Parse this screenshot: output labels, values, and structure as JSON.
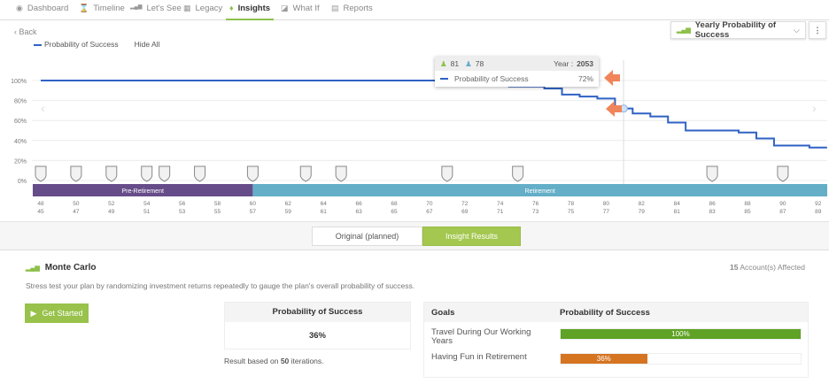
{
  "nav": {
    "tabs": [
      {
        "label": "Dashboard",
        "icon": "dashboard-icon",
        "glyph": "◉"
      },
      {
        "label": "Timeline",
        "icon": "hourglass-icon",
        "glyph": "⌛"
      },
      {
        "label": "Let's See",
        "icon": "bar-chart-icon",
        "glyph": "▂▄▆"
      },
      {
        "label": "Legacy",
        "icon": "legacy-icon",
        "glyph": "▦"
      },
      {
        "label": "Insights",
        "icon": "lightbulb-icon",
        "glyph": "♦"
      },
      {
        "label": "What If",
        "icon": "chat-icon",
        "glyph": "◪"
      },
      {
        "label": "Reports",
        "icon": "document-icon",
        "glyph": "▤"
      }
    ],
    "active": "Insights"
  },
  "back_label": "Back",
  "legend": {
    "series_label": "Probability of Success",
    "hide_all": "Hide All"
  },
  "chart_selector": {
    "selected": "Yearly Probability of Success"
  },
  "tooltip": {
    "person1_age": "81",
    "person2_age": "78",
    "year_label": "Year :",
    "year": "2053",
    "series": "Probability of Success",
    "value": "72%"
  },
  "chart_data": {
    "type": "line",
    "title": "Yearly Probability of Success",
    "series": [
      {
        "name": "Probability of Success",
        "color": "#2f62c4",
        "x": [
          48,
          49,
          50,
          51,
          52,
          53,
          54,
          55,
          56,
          57,
          58,
          59,
          60,
          61,
          62,
          63,
          64,
          65,
          66,
          67,
          68,
          69,
          70,
          71,
          72,
          73,
          74,
          75,
          76,
          77,
          78,
          79,
          80,
          81,
          82,
          83,
          84,
          85,
          86,
          87,
          88,
          89,
          90,
          91,
          92
        ],
        "values": [
          100,
          100,
          100,
          100,
          100,
          100,
          100,
          100,
          100,
          100,
          100,
          100,
          100,
          100,
          100,
          100,
          100,
          100,
          100,
          100,
          100,
          100,
          100,
          100,
          100,
          100,
          100,
          94,
          94,
          92,
          86,
          84,
          82,
          72,
          67,
          64,
          58,
          50,
          50,
          50,
          48,
          42,
          35,
          35,
          33
        ]
      }
    ],
    "y_ticks": [
      "0%",
      "20%",
      "40%",
      "60%",
      "80%",
      "100%"
    ],
    "ylim": [
      0,
      100
    ],
    "x_ticks_age1": [
      "48",
      "50",
      "52",
      "54",
      "56",
      "58",
      "60",
      "62",
      "64",
      "66",
      "68",
      "70",
      "72",
      "74",
      "76",
      "78",
      "80",
      "82",
      "84",
      "86",
      "88",
      "90",
      "92"
    ],
    "x_ticks_age2": [
      "45",
      "47",
      "49",
      "51",
      "53",
      "55",
      "57",
      "59",
      "61",
      "63",
      "65",
      "67",
      "69",
      "71",
      "73",
      "75",
      "77",
      "79",
      "81",
      "83",
      "85",
      "87",
      "89"
    ],
    "phases": [
      {
        "label": "Pre-Retirement",
        "from": 48,
        "to": 60,
        "color": "#674c8a"
      },
      {
        "label": "Retirement",
        "from": 60,
        "to": 92.5,
        "color": "#64aec8"
      }
    ],
    "milestone_ages": [
      48,
      50,
      52,
      54,
      55,
      57,
      60,
      63,
      65,
      71,
      75,
      86,
      90
    ],
    "highlight_age": 81
  },
  "toggle": {
    "original": "Original (planned)",
    "insight": "Insight Results"
  },
  "monte_carlo": {
    "title": "Monte Carlo",
    "description": "Stress test your plan by randomizing investment returns repeatedly to gauge the plan's overall probability of success.",
    "accounts_count": "15",
    "accounts_label": "Account(s) Affected",
    "get_started": "Get Started",
    "prob_header": "Probability of Success",
    "prob_value": "36%",
    "iter_prefix": "Result based on",
    "iterations": "50",
    "iter_suffix": "iterations."
  },
  "goals": {
    "header_goal": "Goals",
    "header_prob": "Probability of Success",
    "rows": [
      {
        "name": "Travel During Our Working Years",
        "value": "100%",
        "pct": 100,
        "color": "#5fa225"
      },
      {
        "name": "Having Fun in Retirement",
        "value": "36%",
        "pct": 36,
        "color": "#d57421"
      }
    ]
  }
}
